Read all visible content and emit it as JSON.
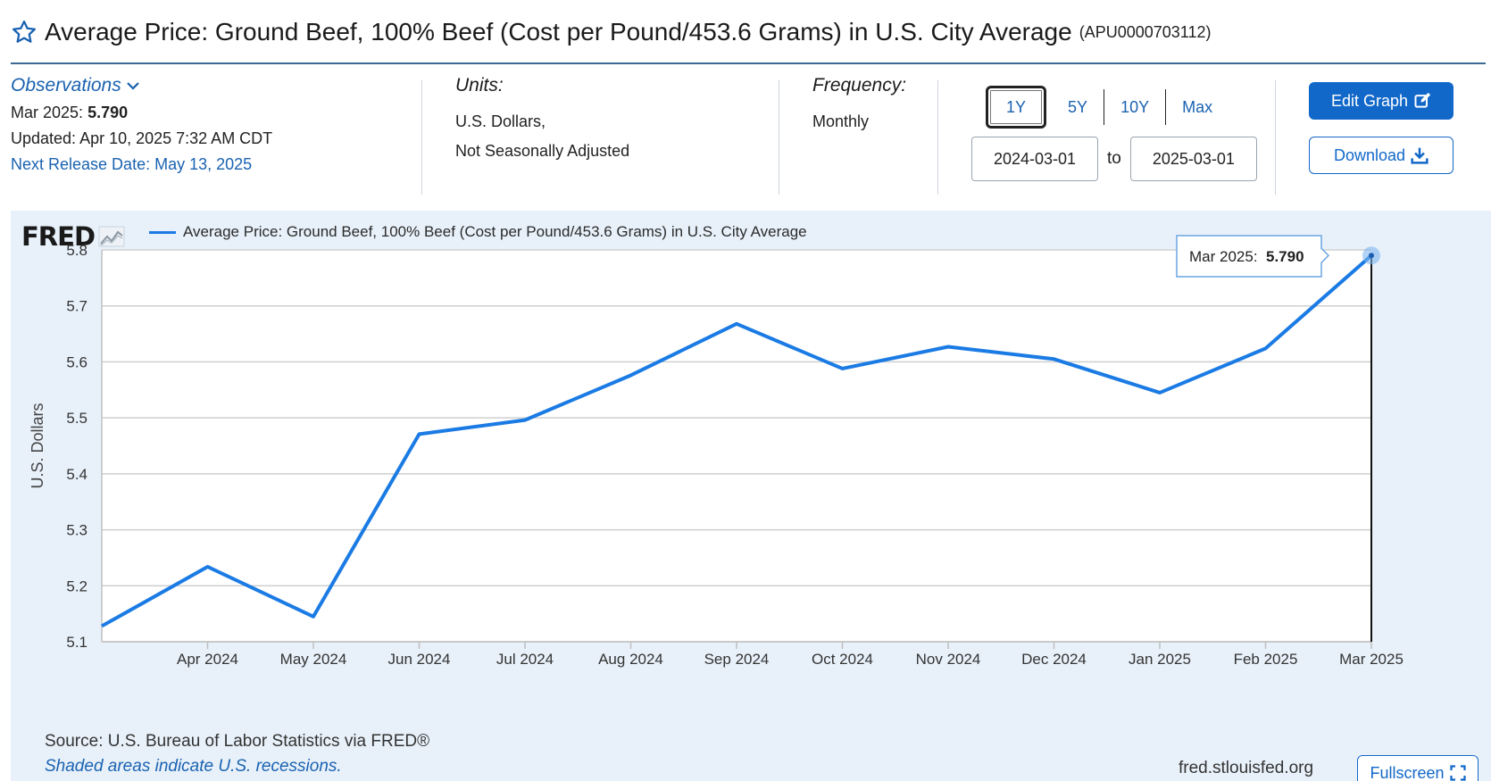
{
  "header": {
    "title": "Average Price: Ground Beef, 100% Beef (Cost per Pound/453.6 Grams) in U.S. City Average",
    "series_id": "(APU0000703112)",
    "star_icon": "star-outline-icon"
  },
  "observations": {
    "label": "Observations",
    "latest_label": "Mar 2025:",
    "latest_value": "5.790",
    "updated": "Updated: Apr 10, 2025 7:32 AM CDT",
    "next_release": "Next Release Date: May 13, 2025"
  },
  "units": {
    "label": "Units:",
    "line1": "U.S. Dollars,",
    "line2": "Not Seasonally Adjusted"
  },
  "frequency": {
    "label": "Frequency:",
    "value": "Monthly"
  },
  "range": {
    "buttons": [
      "1Y",
      "5Y",
      "10Y",
      "Max"
    ],
    "active": "1Y",
    "start": "2024-03-01",
    "to_label": "to",
    "end": "2025-03-01"
  },
  "actions": {
    "edit_graph": "Edit Graph",
    "download": "Download",
    "fullscreen": "Fullscreen"
  },
  "graph": {
    "logo": "FRED",
    "legend": "Average Price: Ground Beef, 100% Beef (Cost per Pound/453.6 Grams) in U.S. City Average",
    "source": "Source: U.S. Bureau of Labor Statistics via FRED®",
    "shaded_note": "Shaded areas indicate U.S. recessions.",
    "site": "fred.stlouisfed.org",
    "tooltip_label": "Mar 2025:",
    "tooltip_value": "5.790"
  },
  "chart_data": {
    "type": "line",
    "x": [
      "Mar 2024",
      "Apr 2024",
      "May 2024",
      "Jun 2024",
      "Jul 2024",
      "Aug 2024",
      "Sep 2024",
      "Oct 2024",
      "Nov 2024",
      "Dec 2024",
      "Jan 2025",
      "Feb 2025",
      "Mar 2025"
    ],
    "x_tick_labels": [
      "Apr 2024",
      "May 2024",
      "Jun 2024",
      "Jul 2024",
      "Aug 2024",
      "Sep 2024",
      "Oct 2024",
      "Nov 2024",
      "Dec 2024",
      "Jan 2025",
      "Feb 2025",
      "Mar 2025"
    ],
    "series": [
      {
        "values": [
          5.128,
          5.234,
          5.145,
          5.471,
          5.496,
          5.576,
          5.668,
          5.588,
          5.627,
          5.605,
          5.545,
          5.624,
          5.79
        ],
        "color": "#1b7be4"
      }
    ],
    "ylabel": "U.S. Dollars",
    "ylim": [
      5.1,
      5.8
    ],
    "y_ticks": [
      "5.1",
      "5.2",
      "5.3",
      "5.4",
      "5.5",
      "5.6",
      "5.7",
      "5.8"
    ],
    "grid": true,
    "legend_position": "top-left"
  }
}
